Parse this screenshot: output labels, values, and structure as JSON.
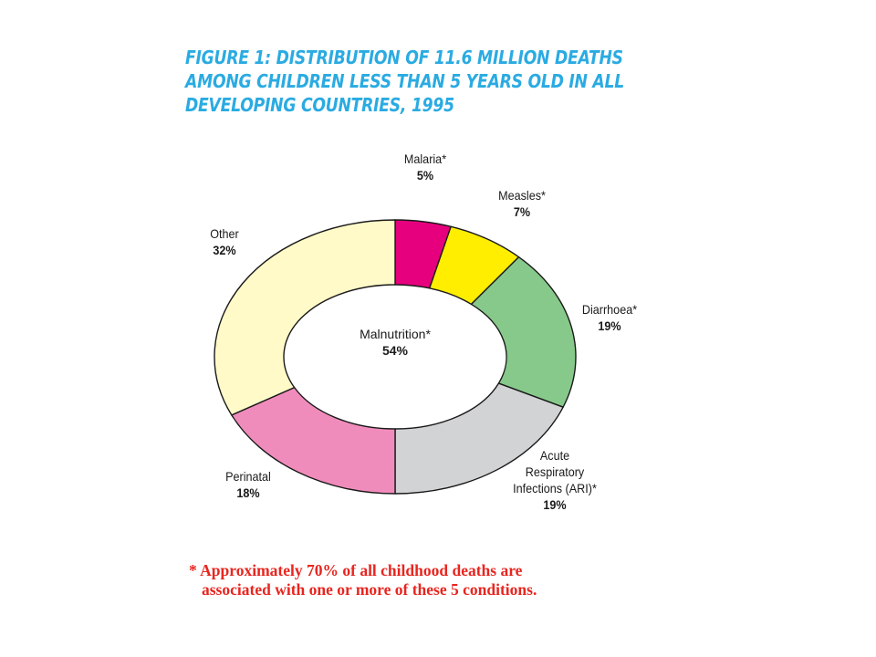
{
  "title_lines": [
    "FIGURE 1: DISTRIBUTION OF 11.6 MILLION DEATHS",
    "AMONG CHILDREN LESS THAN 5 YEARS OLD IN ALL",
    "DEVELOPING COUNTRIES, 1995"
  ],
  "chart_data": {
    "type": "pie",
    "title": "FIGURE 1: DISTRIBUTION OF 11.6 MILLION DEATHS AMONG CHILDREN LESS THAN 5 YEARS OLD IN ALL DEVELOPING COUNTRIES, 1995",
    "donut": true,
    "slices": [
      {
        "key": "malaria",
        "label_lines": [
          "Malaria*"
        ],
        "value": 5,
        "value_text": "5%",
        "color": "#e6007e"
      },
      {
        "key": "measles",
        "label_lines": [
          "Measles*"
        ],
        "value": 7,
        "value_text": "7%",
        "color": "#ffee00"
      },
      {
        "key": "diarrhoea",
        "label_lines": [
          "Diarrhoea*"
        ],
        "value": 19,
        "value_text": "19%",
        "color": "#86c98a"
      },
      {
        "key": "ari",
        "label_lines": [
          "Acute",
          "Respiratory",
          "Infections (ARI)*"
        ],
        "value": 19,
        "value_text": "19%",
        "color": "#d2d3d5"
      },
      {
        "key": "perinatal",
        "label_lines": [
          "Perinatal"
        ],
        "value": 18,
        "value_text": "18%",
        "color": "#f08cbc"
      },
      {
        "key": "other",
        "label_lines": [
          "Other"
        ],
        "value": 32,
        "value_text": "32%",
        "color": "#fffac8"
      }
    ],
    "center": {
      "label": "Malnutrition*",
      "value": 54,
      "value_text": "54%"
    }
  },
  "footnote": {
    "line1": "* Approximately 70% of all childhood deaths are",
    "line2": "associated with one or more of these 5 conditions."
  }
}
